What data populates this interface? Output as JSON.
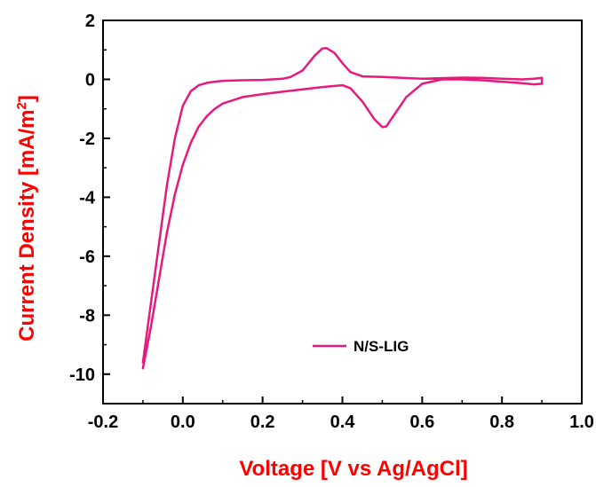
{
  "chart_data": {
    "type": "line",
    "xlabel": "Voltage [V vs Ag/AgCl]",
    "ylabel_main": "Current Density [mA/m",
    "ylabel_sup": "2",
    "ylabel_end": "]",
    "xlim": [
      -0.2,
      1.0
    ],
    "ylim": [
      -11,
      2
    ],
    "x_ticks": [
      "-0.2",
      "0.0",
      "0.2",
      "0.4",
      "0.6",
      "0.8",
      "1.0"
    ],
    "y_ticks": [
      "2",
      "0",
      "-2",
      "-4",
      "-6",
      "-8",
      "-10"
    ],
    "grid": false,
    "legend_position": "bottom-center",
    "series": [
      {
        "name": "N/S-LIG",
        "color": "#e8197d",
        "x": [
          -0.1,
          -0.08,
          -0.06,
          -0.04,
          -0.02,
          0.0,
          0.02,
          0.04,
          0.06,
          0.08,
          0.1,
          0.15,
          0.2,
          0.25,
          0.3,
          0.35,
          0.4,
          0.42,
          0.45,
          0.48,
          0.5,
          0.51,
          0.53,
          0.56,
          0.6,
          0.65,
          0.7,
          0.75,
          0.8,
          0.85,
          0.88,
          0.9,
          0.9,
          0.88,
          0.85,
          0.8,
          0.75,
          0.7,
          0.65,
          0.6,
          0.55,
          0.5,
          0.45,
          0.42,
          0.4,
          0.38,
          0.36,
          0.35,
          0.33,
          0.3,
          0.27,
          0.25,
          0.2,
          0.15,
          0.1,
          0.08,
          0.06,
          0.04,
          0.02,
          0.0,
          -0.02,
          -0.04,
          -0.06,
          -0.08,
          -0.1
        ],
        "y": [
          -9.8,
          -8.4,
          -6.8,
          -5.2,
          -3.9,
          -2.9,
          -2.15,
          -1.6,
          -1.25,
          -1.0,
          -0.82,
          -0.6,
          -0.5,
          -0.42,
          -0.34,
          -0.26,
          -0.2,
          -0.3,
          -0.75,
          -1.35,
          -1.62,
          -1.6,
          -1.2,
          -0.6,
          -0.15,
          0.0,
          0.0,
          -0.03,
          -0.08,
          -0.13,
          -0.17,
          -0.15,
          0.05,
          0.02,
          0.0,
          0.02,
          0.05,
          0.06,
          0.04,
          0.02,
          0.05,
          0.08,
          0.1,
          0.25,
          0.55,
          0.9,
          1.06,
          1.05,
          0.8,
          0.3,
          0.08,
          0.02,
          -0.02,
          -0.03,
          -0.05,
          -0.08,
          -0.12,
          -0.2,
          -0.4,
          -0.9,
          -2.0,
          -3.6,
          -5.6,
          -7.6,
          -9.6
        ]
      }
    ]
  }
}
